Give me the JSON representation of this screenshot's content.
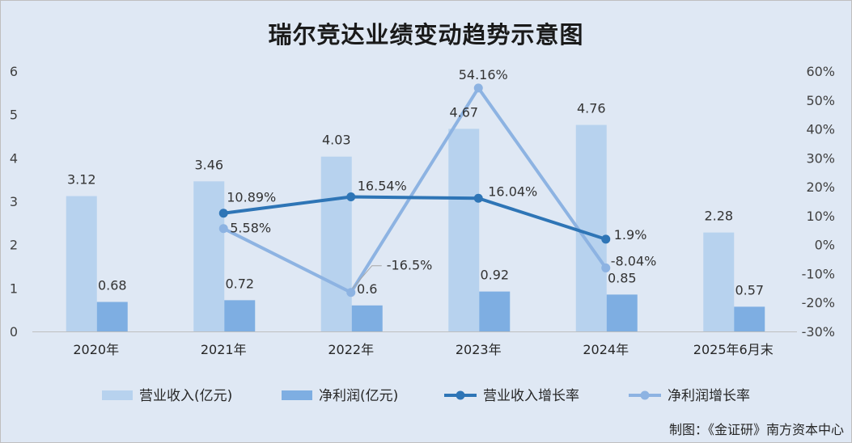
{
  "title": "瑞尔竞达业绩变动趋势示意图",
  "source": "制图：《金证研》南方资本中心",
  "colors": {
    "background": "#dfe8f4",
    "revenue_bar": "#b7d2ee",
    "profit_bar": "#7eaee2",
    "revenue_growth_line": "#2e75b6",
    "profit_growth_line": "#8db3e2"
  },
  "chart_data": {
    "type": "bar+line",
    "categories": [
      "2020年",
      "2021年",
      "2022年",
      "2023年",
      "2024年",
      "2025年6月末"
    ],
    "series": [
      {
        "name": "营业收入(亿元)",
        "type": "bar",
        "axis": "left",
        "values": [
          3.12,
          3.46,
          4.03,
          4.67,
          4.76,
          2.28
        ],
        "labels": [
          "3.12",
          "3.46",
          "4.03",
          "4.67",
          "4.76",
          "2.28"
        ]
      },
      {
        "name": "净利润(亿元)",
        "type": "bar",
        "axis": "left",
        "values": [
          0.68,
          0.72,
          0.6,
          0.92,
          0.85,
          0.57
        ],
        "labels": [
          "0.68",
          "0.72",
          "0.6",
          "0.92",
          "0.85",
          "0.57"
        ]
      },
      {
        "name": "营业收入增长率",
        "type": "line",
        "axis": "right",
        "values": [
          null,
          10.89,
          16.54,
          16.04,
          1.9,
          null
        ],
        "labels": [
          "",
          "10.89%",
          "16.54%",
          "16.04%",
          "1.9%",
          ""
        ]
      },
      {
        "name": "净利润增长率",
        "type": "line",
        "axis": "right",
        "values": [
          null,
          5.58,
          -16.5,
          54.16,
          -8.04,
          null
        ],
        "labels": [
          "",
          "5.58%",
          "-16.5%",
          "54.16%",
          "-8.04%",
          ""
        ]
      }
    ],
    "y_left": {
      "min": 0,
      "max": 6,
      "ticks": [
        "0",
        "1",
        "2",
        "3",
        "4",
        "5",
        "6"
      ]
    },
    "y_right": {
      "min": -30,
      "max": 60,
      "ticks": [
        "-30%",
        "-20%",
        "-10%",
        "0%",
        "10%",
        "20%",
        "30%",
        "40%",
        "50%",
        "60%"
      ]
    },
    "grid": false,
    "legend_position": "bottom"
  }
}
